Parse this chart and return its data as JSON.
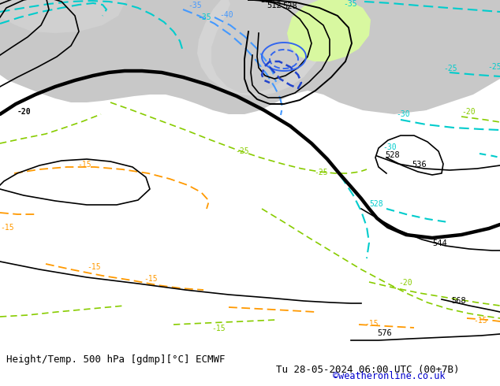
{
  "title_left": "Height/Temp. 500 hPa [gdmp][°C] ECMWF",
  "title_right": "Tu 28-05-2024 06:00 UTC (00+7B)",
  "credit": "©weatheronline.co.uk",
  "green_warm": "#c8f090",
  "green_light": "#d8f8a0",
  "gray_sea": "#c8c8c8",
  "gray_land": "#b8b8b8",
  "white_bg": "#e8e8e8",
  "cyan_color": "#00CCCC",
  "blue_color": "#4499FF",
  "blue_dark": "#2255DD",
  "green_isotherm": "#88CC00",
  "orange_isotherm": "#FF9900",
  "credit_color": "#0000cc"
}
